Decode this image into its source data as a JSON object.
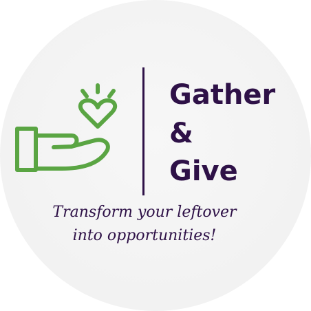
{
  "brand": {
    "line1": "Gather",
    "line2": "&",
    "line3": "Give"
  },
  "tagline": {
    "line1": "Transform your leftover",
    "line2": "into opportunities!"
  },
  "colors": {
    "brand_purple": "#2e1147",
    "icon_green": "#5aa543",
    "background": "#f3f3f3"
  },
  "icons": {
    "main": "hand-holding-heart-icon"
  }
}
